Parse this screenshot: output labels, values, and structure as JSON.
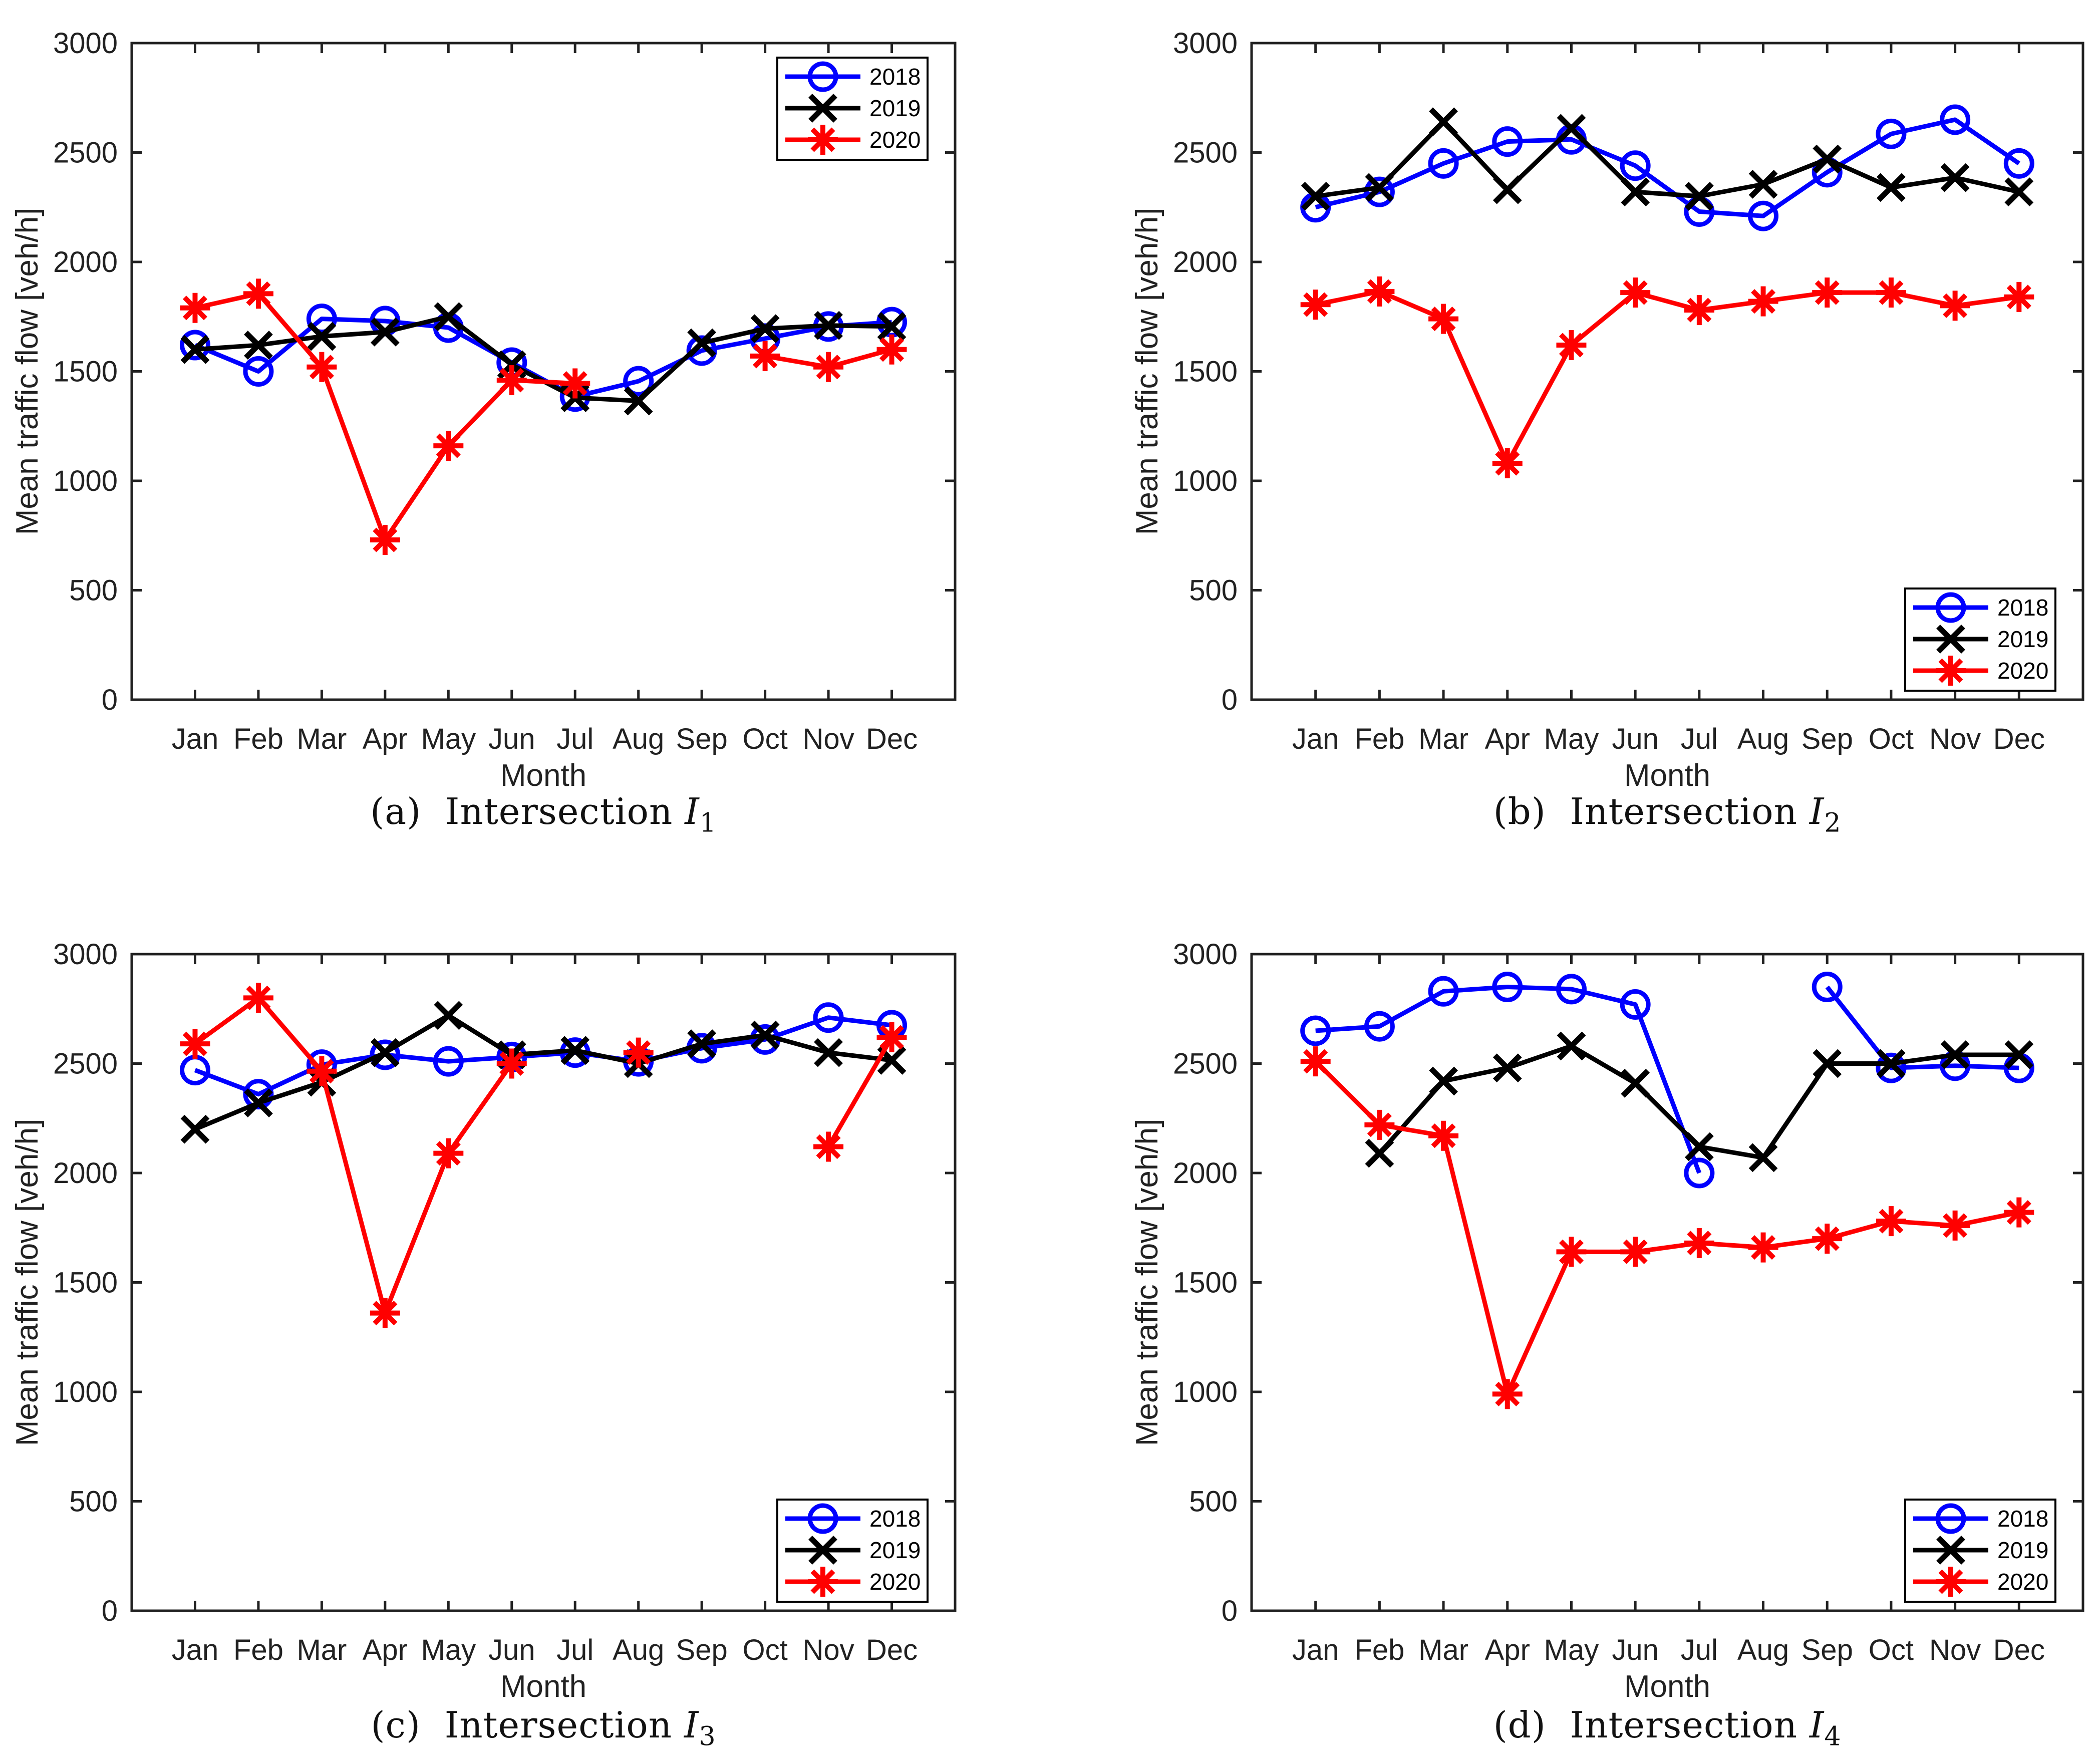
{
  "figure": {
    "background": "#ffffff",
    "axis_color": "#212121",
    "ylabel": "Mean traffic flow [veh/h]",
    "xlabel": "Month",
    "months": [
      "Jan",
      "Feb",
      "Mar",
      "Apr",
      "May",
      "Jun",
      "Jul",
      "Aug",
      "Sep",
      "Oct",
      "Nov",
      "Dec"
    ],
    "yticks": [
      0,
      500,
      1000,
      1500,
      2000,
      2500,
      3000
    ],
    "ylim": [
      0,
      3000
    ],
    "series_colors": {
      "2018": "#0000ff",
      "2019": "#000000",
      "2020": "#ff0000"
    },
    "legend_labels": [
      "2018",
      "2019",
      "2020"
    ]
  },
  "chart_data": [
    {
      "id": "a",
      "type": "line",
      "caption": {
        "prefix": "(a)",
        "word": "Intersection",
        "symbol": "I",
        "sub": "1"
      },
      "xlabel": "Month",
      "ylabel": "Mean traffic flow [veh/h]",
      "categories": [
        "Jan",
        "Feb",
        "Mar",
        "Apr",
        "May",
        "Jun",
        "Jul",
        "Aug",
        "Sep",
        "Oct",
        "Nov",
        "Dec"
      ],
      "ylim": [
        0,
        3000
      ],
      "yticks": [
        0,
        500,
        1000,
        1500,
        2000,
        2500,
        3000
      ],
      "grid": false,
      "legend_position": "top-right",
      "series": [
        {
          "name": "2018",
          "color": "#0000ff",
          "marker": "circle",
          "values": [
            1620,
            1500,
            1740,
            1730,
            1700,
            1540,
            1385,
            1455,
            1595,
            1650,
            1705,
            1725
          ]
        },
        {
          "name": "2019",
          "color": "#000000",
          "marker": "x",
          "values": [
            1600,
            1620,
            1660,
            1680,
            1750,
            1530,
            1380,
            1365,
            1630,
            1695,
            1710,
            1705
          ]
        },
        {
          "name": "2020",
          "color": "#ff0000",
          "marker": "asterisk",
          "values": [
            1790,
            1855,
            1520,
            730,
            1160,
            1460,
            1445,
            null,
            null,
            1570,
            1520,
            1600
          ]
        }
      ]
    },
    {
      "id": "b",
      "type": "line",
      "caption": {
        "prefix": "(b)",
        "word": "Intersection",
        "symbol": "I",
        "sub": "2"
      },
      "xlabel": "Month",
      "ylabel": "Mean traffic flow [veh/h]",
      "categories": [
        "Jan",
        "Feb",
        "Mar",
        "Apr",
        "May",
        "Jun",
        "Jul",
        "Aug",
        "Sep",
        "Oct",
        "Nov",
        "Dec"
      ],
      "ylim": [
        0,
        3000
      ],
      "yticks": [
        0,
        500,
        1000,
        1500,
        2000,
        2500,
        3000
      ],
      "grid": false,
      "legend_position": "bottom-right",
      "series": [
        {
          "name": "2018",
          "color": "#0000ff",
          "marker": "circle",
          "values": [
            2250,
            2320,
            2450,
            2550,
            2560,
            2440,
            2230,
            2210,
            2410,
            2585,
            2650,
            2450
          ]
        },
        {
          "name": "2019",
          "color": "#000000",
          "marker": "x",
          "values": [
            2300,
            2340,
            2640,
            2330,
            2610,
            2320,
            2300,
            2355,
            2470,
            2340,
            2385,
            2320
          ]
        },
        {
          "name": "2020",
          "color": "#ff0000",
          "marker": "asterisk",
          "values": [
            1805,
            1865,
            1740,
            1080,
            1620,
            1860,
            1780,
            1820,
            1860,
            1860,
            1800,
            1840
          ]
        }
      ]
    },
    {
      "id": "c",
      "type": "line",
      "caption": {
        "prefix": "(c)",
        "word": "Intersection",
        "symbol": "I",
        "sub": "3"
      },
      "xlabel": "Month",
      "ylabel": "Mean traffic flow [veh/h]",
      "categories": [
        "Jan",
        "Feb",
        "Mar",
        "Apr",
        "May",
        "Jun",
        "Jul",
        "Aug",
        "Sep",
        "Oct",
        "Nov",
        "Dec"
      ],
      "ylim": [
        0,
        3000
      ],
      "yticks": [
        0,
        500,
        1000,
        1500,
        2000,
        2500,
        3000
      ],
      "grid": false,
      "legend_position": "bottom-right",
      "series": [
        {
          "name": "2018",
          "color": "#0000ff",
          "marker": "circle",
          "values": [
            2470,
            2360,
            2495,
            2540,
            2510,
            2530,
            2550,
            2510,
            2570,
            2610,
            2710,
            2675
          ]
        },
        {
          "name": "2019",
          "color": "#000000",
          "marker": "x",
          "values": [
            2200,
            2320,
            2415,
            2550,
            2720,
            2540,
            2560,
            2500,
            2590,
            2630,
            2550,
            2515
          ]
        },
        {
          "name": "2020",
          "color": "#ff0000",
          "marker": "asterisk",
          "values": [
            2590,
            2800,
            2465,
            1360,
            2090,
            2500,
            null,
            2550,
            null,
            null,
            2120,
            2620
          ]
        }
      ]
    },
    {
      "id": "d",
      "type": "line",
      "caption": {
        "prefix": "(d)",
        "word": "Intersection",
        "symbol": "I",
        "sub": "4"
      },
      "xlabel": "Month",
      "ylabel": "Mean traffic flow [veh/h]",
      "categories": [
        "Jan",
        "Feb",
        "Mar",
        "Apr",
        "May",
        "Jun",
        "Jul",
        "Aug",
        "Sep",
        "Oct",
        "Nov",
        "Dec"
      ],
      "ylim": [
        0,
        3000
      ],
      "yticks": [
        0,
        500,
        1000,
        1500,
        2000,
        2500,
        3000
      ],
      "grid": false,
      "legend_position": "bottom-right",
      "series": [
        {
          "name": "2018",
          "color": "#0000ff",
          "marker": "circle",
          "values": [
            2650,
            2670,
            2830,
            2850,
            2840,
            2770,
            2000,
            null,
            2850,
            2480,
            2490,
            2480
          ]
        },
        {
          "name": "2019",
          "color": "#000000",
          "marker": "x",
          "values": [
            null,
            2090,
            2420,
            2480,
            2580,
            2410,
            2120,
            2070,
            2500,
            2500,
            2540,
            2540
          ]
        },
        {
          "name": "2020",
          "color": "#ff0000",
          "marker": "asterisk",
          "values": [
            2510,
            2220,
            2170,
            990,
            1640,
            1640,
            1680,
            1660,
            1700,
            1780,
            1760,
            1820
          ]
        }
      ]
    }
  ]
}
